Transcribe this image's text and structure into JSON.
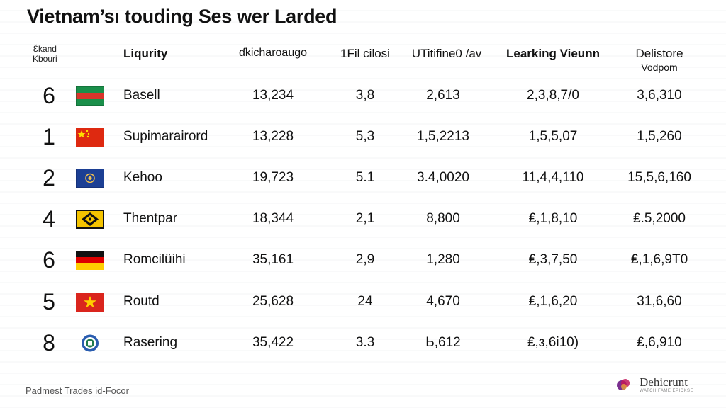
{
  "title": "Vietnam’s​ı touding Ses wer Larded",
  "header": {
    "rank_line1": "Ɛ̈kand",
    "rank_line2": "Kbouri",
    "name": "Liqurity",
    "col1": "ɗkicharoaugo",
    "col2": "1Fil cilosi",
    "col3": "UTitifine0 /av",
    "col4": "Learking Vieunn",
    "col5": "Delistore",
    "col5_sub": "Vodpom"
  },
  "rows": [
    {
      "rank": "6",
      "flag": "green-red-stripe",
      "name": "Basell",
      "v1": "13,234",
      "v2": "3,8",
      "v3": "2,613",
      "v4": "2,3,8,7/0",
      "v5": "3,6,310"
    },
    {
      "rank": "1",
      "flag": "red-star",
      "name": "Supimarairord",
      "v1": "13,228",
      "v2": "5,3",
      "v3": "1,5,2213",
      "v4": "1,5,5,07",
      "v5": "1,5,260"
    },
    {
      "rank": "2",
      "flag": "blue-emblem",
      "name": "Kehoo",
      "v1": "19,723",
      "v2": "5.1",
      "v3": "3.4,0020",
      "v4": "11,4,4,110",
      "v5": "15,5,6,160"
    },
    {
      "rank": "4",
      "flag": "yellow-diamond",
      "name": "Thentpar",
      "v1": "18,344",
      "v2": "2,1",
      "v3": "8,800",
      "v4": "₤,1,8,10",
      "v5": "₤.5,2000"
    },
    {
      "rank": "6",
      "flag": "black-red-gold",
      "name": "Romcilüihi",
      "v1": "35,161",
      "v2": "2,9",
      "v3": "1,280",
      "v4": "₤,3,7,50",
      "v5": "₤,1,6,9T0"
    },
    {
      "rank": "5",
      "flag": "red-yellow-star",
      "name": "Routd",
      "v1": "25,628",
      "v2": "24",
      "v3": "4,670",
      "v4": "₤,1,6,20",
      "v5": "31,6,60"
    },
    {
      "rank": "8",
      "flag": "round-badge",
      "name": "Rasering",
      "v1": "35,422",
      "v2": "3.3",
      "v3": "Ь,612",
      "v4": "₤,ɜ,6i10)",
      "v5": "₤,6,910"
    }
  ],
  "footer": "Padmest Trades id-Focor",
  "brand": {
    "name": "Dehicrunt",
    "tagline": "WATCH FAME EPICKSE"
  }
}
